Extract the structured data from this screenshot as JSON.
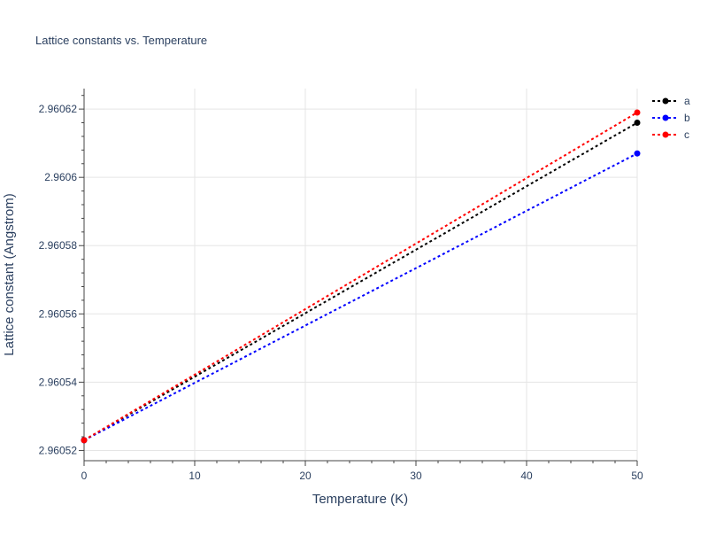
{
  "chart_data": {
    "type": "line",
    "title": "Lattice constants vs. Temperature",
    "xlabel": "Temperature (K)",
    "ylabel": "Lattice constant (Angstrom)",
    "xlim": [
      0,
      50
    ],
    "ylim": [
      2.960517,
      2.960626
    ],
    "xticks": [
      0,
      10,
      20,
      30,
      40,
      50
    ],
    "xtick_labels": [
      "0",
      "10",
      "20",
      "30",
      "40",
      "50"
    ],
    "yticks": [
      2.96052,
      2.96054,
      2.96056,
      2.96058,
      2.9606,
      2.96062
    ],
    "ytick_labels": [
      "2.96052",
      "2.96054",
      "2.96056",
      "2.96058",
      "2.9606",
      "2.96062"
    ],
    "grid": true,
    "legend_position": "top-right",
    "x": [
      0,
      50
    ],
    "series": [
      {
        "name": "a",
        "color": "#000000",
        "values": [
          2.960523,
          2.960616
        ]
      },
      {
        "name": "b",
        "color": "#0000ff",
        "values": [
          2.960523,
          2.960607
        ]
      },
      {
        "name": "c",
        "color": "#ff0000",
        "values": [
          2.960523,
          2.960619
        ]
      }
    ]
  }
}
